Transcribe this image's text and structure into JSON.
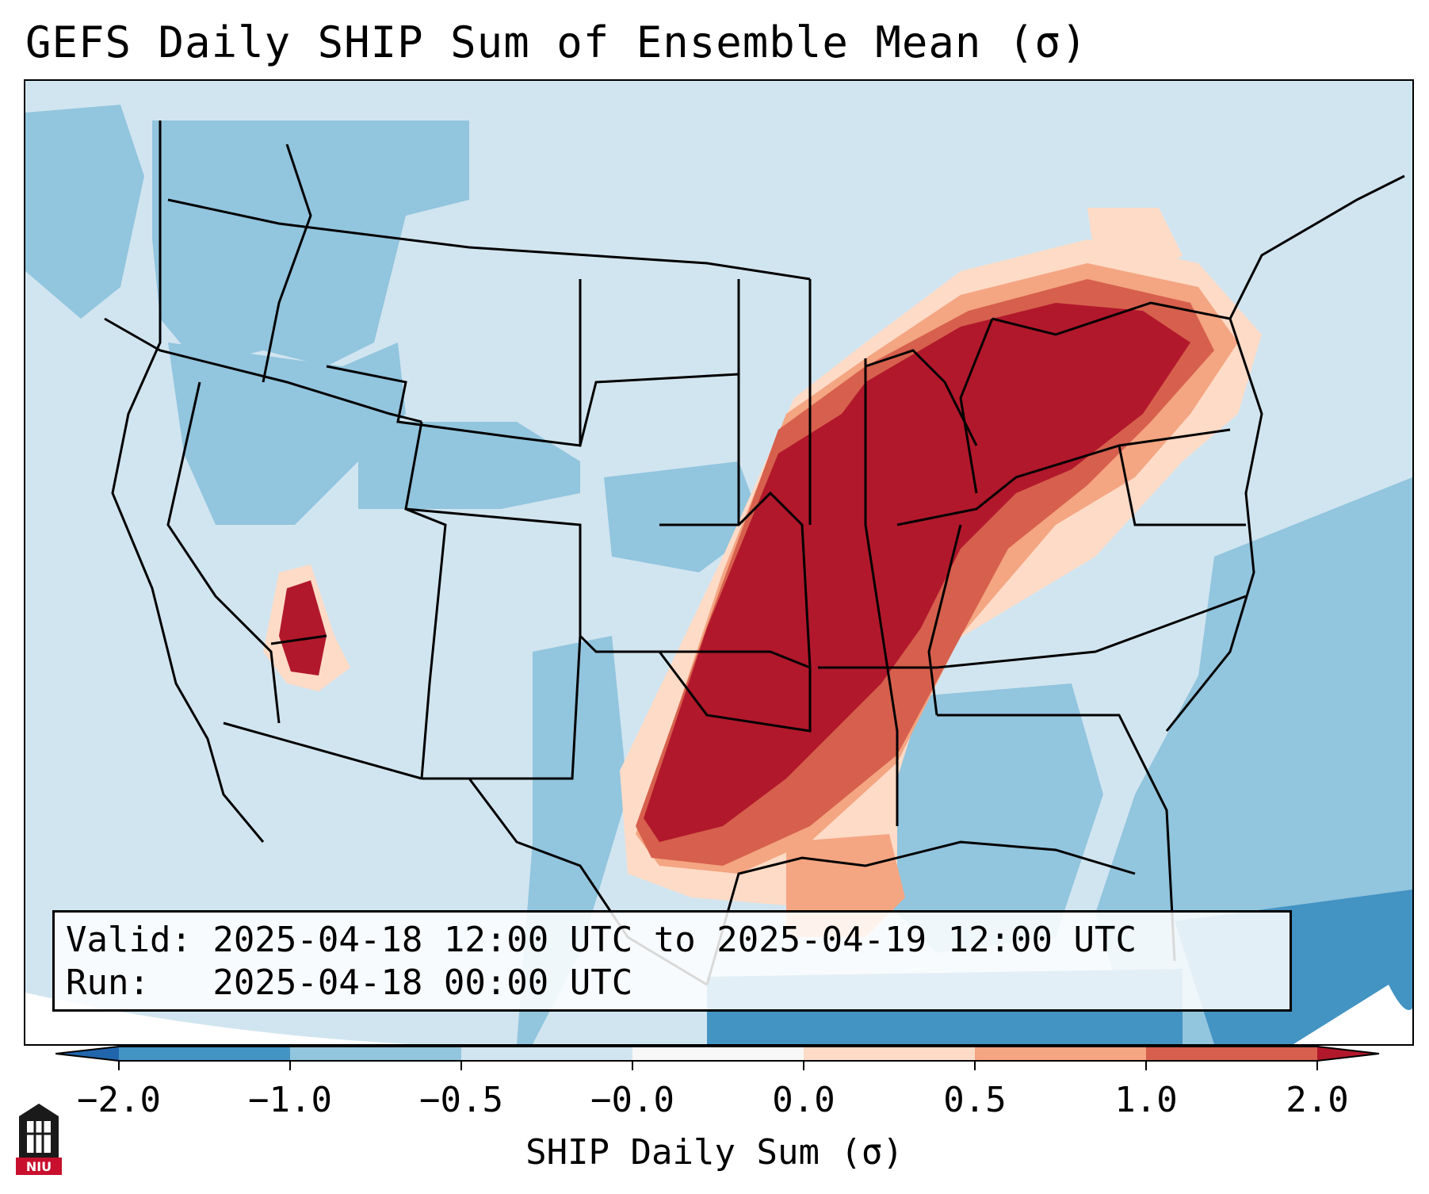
{
  "title": "GEFS Daily SHIP Sum of Ensemble Mean (σ)",
  "valid_line": "Valid: 2025-04-18 12:00 UTC to 2025-04-19 12:00 UTC",
  "run_line": "Run:   2025-04-18 00:00 UTC",
  "colorbar": {
    "title": "SHIP Daily Sum (σ)",
    "ticks": [
      "−2.0",
      "−1.0",
      "−0.5",
      "−0.0",
      "0.0",
      "0.5",
      "1.0",
      "2.0"
    ],
    "colors": [
      "#4393c3",
      "#92c5de",
      "#d1e5f0",
      "#f7f7f7",
      "#fddbc7",
      "#f4a582",
      "#d6604d",
      "#b2182b"
    ]
  },
  "logo_text": "NIU",
  "chart_data": {
    "type": "heatmap",
    "field": "SHIP daily sum of GEFS ensemble mean",
    "units": "σ",
    "bins": [
      {
        "range": "< -2.0",
        "color": "#2166ac"
      },
      {
        "range": "-2.0 to -1.0",
        "color": "#4393c3"
      },
      {
        "range": "-1.0 to -0.5",
        "color": "#92c5de"
      },
      {
        "range": "-0.5 to -0.0",
        "color": "#d1e5f0"
      },
      {
        "range": "0.0 to 0.5",
        "color": "#fddbc7"
      },
      {
        "range": "0.5 to 1.0",
        "color": "#f4a582"
      },
      {
        "range": "1.0 to 2.0",
        "color": "#d6604d"
      },
      {
        "range": "> 2.0",
        "color": "#b2182b"
      }
    ]
  }
}
